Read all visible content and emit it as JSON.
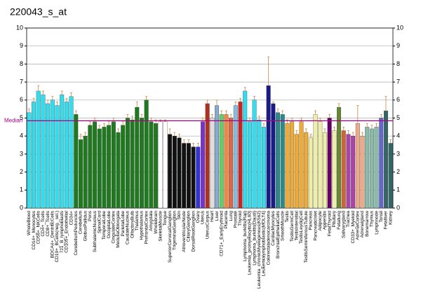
{
  "chart_data": {
    "type": "bar",
    "title": "220043_s_at",
    "categories": [
      "WholeBlood",
      "CD14+_Monocytes",
      "CD56+_NKCells",
      "CD4+_Tcells",
      "CD8+_Tcells",
      "BDCA4+_DentriticCells",
      "CD19+_BCells(neg._sel.)",
      "721_B_lymphoblasts",
      "CD105+_Endothelial",
      "CD34+",
      "CerebellumPeduncles",
      "Cerebellum",
      "GlobusPallidus",
      "Pons",
      "SubthalamicNucleus",
      "SpinalCord",
      "TemporalLobe",
      "OccipitalLobe",
      "CingulateCortex",
      "MedullaOblongata",
      "ParietalLobe",
      "CaudateNucleus",
      "OlfactoryBulb",
      "Thalamus",
      "Hypothalamus",
      "PrefrontalCortex",
      "Amygdala",
      "Wholebrain",
      "SkeletalMuscle",
      "Tongue",
      "SuperiorCervicalGanglion",
      "TrigeminalGanglion",
      "Skin",
      "AtrioventricularNode",
      "CiliaryGanglion",
      "DorsalRootGanglion",
      "Ovary",
      "Uterus",
      "UterusCorpus",
      "Heart",
      "Liver",
      "CD71+_EarlyErythroid",
      "Placenta",
      "Lung",
      "Prostate",
      "Thyroid",
      "Lymphoma_burkitts(Raji)",
      "Leukemia_promyelocytic(HL60)",
      "Lymphoma_burkitts(Daudi)",
      "Leukemia_chronicMyelogenous(K562)",
      "Leukemialymphoblastic(MOLT4)",
      "Colorectaladenocarcinoma",
      "CardiacMyocytes",
      "BronchialEpithelialCells",
      "SmoothMuscle",
      "Testis",
      "TestisGermCell",
      "TestisIntersitial",
      "TestisLeydigCell",
      "TestisSeminiferousTubule",
      "Pancreas",
      "PancreaticIslet",
      "Adipocyte",
      "Appendix",
      "FetalThyroid",
      "Pituitary",
      "Fetallung",
      "Salivarygland",
      "Trachea",
      "CD33+_Myeloid",
      "AdrenalCortex",
      "Adrenalgland",
      "Bonemarrow",
      "Thymus",
      "Lymphnode",
      "Tonsil",
      "Fetalliver",
      "Kidney"
    ],
    "values": [
      5.3,
      5.9,
      6.5,
      6.3,
      5.8,
      6.0,
      5.7,
      6.3,
      5.9,
      6.2,
      5.2,
      3.8,
      4.0,
      4.6,
      4.8,
      4.4,
      4.5,
      4.6,
      4.8,
      4.2,
      4.6,
      5.0,
      4.9,
      5.6,
      5.0,
      6.0,
      4.8,
      4.7,
      4.8,
      4.8,
      4.1,
      4.0,
      3.9,
      3.6,
      3.6,
      3.4,
      3.4,
      4.8,
      5.8,
      5.0,
      5.7,
      5.2,
      5.2,
      5.0,
      5.7,
      5.9,
      6.5,
      4.8,
      6.0,
      4.9,
      4.5,
      6.8,
      5.8,
      5.3,
      5.2,
      4.7,
      4.8,
      4.1,
      4.8,
      4.2,
      3.9,
      5.2,
      4.8,
      4.2,
      5.0,
      4.3,
      5.6,
      4.3,
      4.1,
      4.0,
      4.7,
      4.0,
      4.5,
      4.4,
      4.5,
      5.0,
      5.4,
      3.6
    ],
    "errors": [
      0.2,
      0.2,
      0.3,
      0.2,
      0.2,
      0.2,
      0.2,
      0.2,
      0.2,
      0.2,
      0.2,
      0.3,
      0.2,
      0.2,
      0.2,
      0.2,
      0.2,
      0.2,
      0.2,
      0.2,
      0.2,
      0.2,
      0.2,
      0.3,
      0.2,
      0.2,
      0.2,
      0.2,
      0.1,
      0.1,
      0.3,
      0.2,
      0.2,
      0.2,
      0.2,
      0.2,
      0.2,
      0.2,
      0.2,
      0.2,
      0.3,
      0.2,
      0.2,
      0.2,
      0.2,
      0.2,
      0.2,
      0.2,
      0.2,
      0.2,
      0.2,
      1.6,
      0.1,
      0.2,
      0.2,
      0.2,
      0.2,
      0.2,
      0.2,
      0.2,
      0.2,
      0.2,
      0.2,
      0.2,
      0.2,
      0.2,
      0.2,
      0.2,
      0.2,
      0.2,
      1.0,
      0.2,
      0.2,
      0.2,
      0.2,
      0.2,
      0.8,
      0.2
    ],
    "colors": [
      "#33ddee",
      "#33ddee",
      "#33ddee",
      "#33ddee",
      "#33ddee",
      "#33ddee",
      "#33ddee",
      "#33ddee",
      "#33ddee",
      "#33ddee",
      "#1f7a1f",
      "#1f7a1f",
      "#1f7a1f",
      "#1f7a1f",
      "#1f7a1f",
      "#1f7a1f",
      "#1f7a1f",
      "#1f7a1f",
      "#1f7a1f",
      "#1f7a1f",
      "#1f7a1f",
      "#1f7a1f",
      "#1f7a1f",
      "#1f7a1f",
      "#1f7a1f",
      "#1f7a1f",
      "#1f7a1f",
      "#1f7a1f",
      "#ffffff",
      "#ffffff",
      "#111111",
      "#111111",
      "#111111",
      "#111111",
      "#111111",
      "#111111",
      "#3333dd",
      "#7733cc",
      "#b03020",
      "#dddddd",
      "#88aacc",
      "#66cc66",
      "#ee8844",
      "#dd6644",
      "#88bbdd",
      "#cc2222",
      "#33ddee",
      "#33ddee",
      "#33ddee",
      "#33ddee",
      "#33ddee",
      "#1a1a88",
      "#1a1a88",
      "#2a8a8a",
      "#2a8a8a",
      "#eeaa33",
      "#eeaa33",
      "#eeaa33",
      "#eeaa33",
      "#eeaa33",
      "#eeeeaa",
      "#eeeeaa",
      "#eeeeaa",
      "#eeeeaa",
      "#660066",
      "#eeeeaa",
      "#668833",
      "#cc6633",
      "#aa44aa",
      "#aa44aa",
      "#eeaa88",
      "#eeaa88",
      "#88bbaa",
      "#88bbaa",
      "#88bbaa",
      "#6666cc",
      "#336666",
      "#336666"
    ],
    "ylim": [
      0,
      10
    ],
    "yticks": [
      0,
      1,
      2,
      3,
      4,
      5,
      6,
      7,
      8,
      9,
      10
    ],
    "grid": true,
    "median": 4.85,
    "median_label": "Median",
    "median_color": "#aa0088",
    "error_color": "#cc8844"
  }
}
